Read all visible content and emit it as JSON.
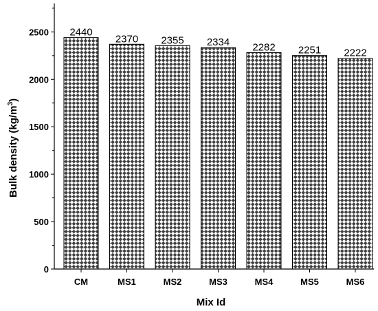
{
  "chart_data": {
    "type": "bar",
    "categories": [
      "CM",
      "MS1",
      "MS2",
      "MS3",
      "MS4",
      "MS5",
      "MS6"
    ],
    "values": [
      2440,
      2370,
      2355,
      2334,
      2282,
      2251,
      2222
    ],
    "value_labels": [
      "2440",
      "2370",
      "2355",
      "2334",
      "2282",
      "2251",
      "2222"
    ],
    "xlabel": "Mix Id",
    "ylabel_main": "Bulk density (kg/m",
    "ylabel_sup": "3",
    "ylabel_end": ")",
    "ylim": [
      0,
      2800
    ],
    "yticks": [
      0,
      500,
      1000,
      1500,
      2000,
      2500
    ],
    "grid": false,
    "bar_fill": "checkerboard",
    "colors": {
      "dark": "#404040",
      "light": "#ffffff",
      "axis": "#000000"
    }
  }
}
